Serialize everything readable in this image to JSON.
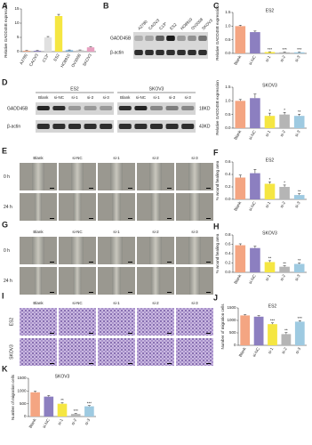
{
  "panel_labels": [
    "A",
    "B",
    "C",
    "D",
    "E",
    "F",
    "G",
    "H",
    "I",
    "J",
    "K"
  ],
  "blot_b": {
    "lanes": [
      "A2780",
      "CAOV3",
      "C13*",
      "ES2",
      "HO8910",
      "OV2008",
      "SKOV3"
    ],
    "rows": [
      "GADD45B",
      "β-actin"
    ]
  },
  "blot_d": {
    "groups": [
      "ES2",
      "SKOV3"
    ],
    "lanes": [
      "Blank",
      "si-NC",
      "si-1",
      "si-2",
      "si-3",
      "Blank",
      "si-NC",
      "si-1",
      "si-2",
      "si-3"
    ],
    "rows": [
      "GADD45B",
      "β-actin"
    ],
    "sizes": [
      "18KD",
      "43KD"
    ]
  },
  "wound_e": {
    "columns": [
      "Blank",
      "si-NC",
      "si-1",
      "si-2",
      "si-3"
    ],
    "rows": [
      "0 h",
      "24 h"
    ]
  },
  "wound_g": {
    "columns": [
      "Blank",
      "si-NC",
      "si-1",
      "si-2",
      "si-3"
    ],
    "rows": [
      "0 h",
      "24 h"
    ]
  },
  "transwell_i": {
    "columns": [
      "Blank",
      "si-NC",
      "si-1",
      "si-2",
      "si-3"
    ],
    "rows": [
      "ES2",
      "SKOV3"
    ]
  },
  "chart_data": [
    {
      "type": "bar",
      "y_label": "Relative GADD45B expression",
      "categories": [
        "A2780",
        "CAOV3",
        "C13*",
        "ES2",
        "HO8910",
        "OV2008",
        "SKOV3"
      ],
      "values": [
        0.3,
        0.3,
        5,
        12.5,
        0.5,
        0.5,
        1.5
      ],
      "errors": [
        0.1,
        0.1,
        0.3,
        0.6,
        0.1,
        0.1,
        0.2
      ],
      "colors": [
        "#f4a582",
        "#8c7fc0",
        "#e0e0e0",
        "#f5e642",
        "#7fb2d8",
        "#c9c9c9",
        "#e7a0c0"
      ],
      "ylim": [
        0,
        15
      ],
      "yticks": [
        0,
        5,
        10,
        15
      ]
    },
    {
      "type": "bar",
      "title": "ES2",
      "y_label": "Relative GADD45B expression",
      "categories": [
        "Blank",
        "si-NC",
        "si-1",
        "si-2",
        "si-3"
      ],
      "values": [
        1.0,
        0.78,
        0.05,
        0.04,
        0.04
      ],
      "errors": [
        0.03,
        0.04,
        0.01,
        0.01,
        0.01
      ],
      "colors": [
        "#f4a582",
        "#8c7fc0",
        "#f5e642",
        "#b5b5b5",
        "#9ecae1"
      ],
      "ylim": [
        0,
        1.5
      ],
      "yticks": [
        {
          "value": 0,
          "label": "0.0"
        },
        0.5,
        {
          "value": 1,
          "label": "1.0"
        },
        1.5
      ],
      "annotations": [
        {
          "category": "si-1",
          "text": "***"
        },
        {
          "category": "si-2",
          "text": "***"
        },
        {
          "category": "si-3",
          "text": "***"
        }
      ]
    },
    {
      "type": "bar",
      "title": "SKOV3",
      "y_label": "Relative GADD45B expression",
      "categories": [
        "Blank",
        "si-NC",
        "si-1",
        "si-2",
        "si-3"
      ],
      "values": [
        1.0,
        1.1,
        0.45,
        0.5,
        0.45
      ],
      "errors": [
        0.05,
        0.15,
        0.1,
        0.08,
        0.06
      ],
      "colors": [
        "#f4a582",
        "#8c7fc0",
        "#f5e642",
        "#b5b5b5",
        "#9ecae1"
      ],
      "ylim": [
        0,
        1.5
      ],
      "yticks": [
        {
          "value": 0,
          "label": "0.0"
        },
        0.5,
        {
          "value": 1,
          "label": "1.0"
        },
        1.5
      ],
      "annotations": [
        {
          "category": "si-1",
          "text": "*"
        },
        {
          "category": "si-2",
          "text": "*"
        },
        {
          "category": "si-3",
          "text": "**"
        }
      ]
    },
    {
      "type": "bar",
      "title": "ES2",
      "y_label": "% wound healing area",
      "categories": [
        "Blank",
        "si-NC",
        "si-1",
        "si-2",
        "si-3"
      ],
      "values": [
        0.35,
        0.42,
        0.25,
        0.2,
        0.07
      ],
      "errors": [
        0.04,
        0.06,
        0.03,
        0.03,
        0.02
      ],
      "colors": [
        "#f4a582",
        "#8c7fc0",
        "#f5e642",
        "#b5b5b5",
        "#9ecae1"
      ],
      "ylim": [
        0,
        0.6
      ],
      "yticks": [
        {
          "value": 0,
          "label": "0.0"
        },
        0.2,
        0.4,
        0.6
      ],
      "annotations": [
        {
          "category": "si-1",
          "text": "*"
        },
        {
          "category": "si-2",
          "text": "*"
        },
        {
          "category": "si-3",
          "text": "**"
        }
      ]
    },
    {
      "type": "bar",
      "title": "SKOV3",
      "y_label": "% wound healing area",
      "categories": [
        "Blank",
        "si-NC",
        "si-1",
        "si-2",
        "si-3"
      ],
      "values": [
        0.58,
        0.52,
        0.22,
        0.12,
        0.18
      ],
      "errors": [
        0.03,
        0.04,
        0.03,
        0.02,
        0.02
      ],
      "colors": [
        "#f4a582",
        "#8c7fc0",
        "#f5e642",
        "#b5b5b5",
        "#9ecae1"
      ],
      "ylim": [
        0,
        0.8
      ],
      "yticks": [
        {
          "value": 0,
          "label": "0.0"
        },
        0.2,
        0.4,
        0.6,
        0.8
      ],
      "annotations": [
        {
          "category": "si-1",
          "text": "**"
        },
        {
          "category": "si-2",
          "text": "**"
        },
        {
          "category": "si-3",
          "text": "**"
        }
      ]
    },
    {
      "type": "bar",
      "title": "ES2",
      "y_label": "Number of migration cells",
      "categories": [
        "Blank",
        "si-NC",
        "si-1",
        "si-2",
        "si-3"
      ],
      "values": [
        1200,
        1150,
        850,
        450,
        950
      ],
      "errors": [
        30,
        40,
        50,
        60,
        40
      ],
      "colors": [
        "#f4a582",
        "#8c7fc0",
        "#f5e642",
        "#b5b5b5",
        "#9ecae1"
      ],
      "ylim": [
        0,
        1500
      ],
      "yticks": [
        0,
        500,
        1000,
        1500
      ],
      "annotations": [
        {
          "category": "si-1",
          "text": "***"
        },
        {
          "category": "si-2",
          "text": "**"
        },
        {
          "category": "si-3",
          "text": "***"
        }
      ]
    },
    {
      "type": "bar",
      "title": "SKOV3",
      "y_label": "Number of migration cells",
      "categories": [
        "Blank",
        "si-NC",
        "si-1",
        "si-2",
        "si-3"
      ],
      "values": [
        950,
        780,
        500,
        100,
        400
      ],
      "errors": [
        40,
        40,
        40,
        20,
        30
      ],
      "colors": [
        "#f4a582",
        "#8c7fc0",
        "#f5e642",
        "#b5b5b5",
        "#9ecae1"
      ],
      "ylim": [
        0,
        1500
      ],
      "yticks": [
        0,
        500,
        1000,
        1500
      ],
      "annotations": [
        {
          "category": "si-1",
          "text": "**"
        },
        {
          "category": "si-2",
          "text": "***"
        },
        {
          "category": "si-3",
          "text": "***"
        }
      ]
    }
  ]
}
